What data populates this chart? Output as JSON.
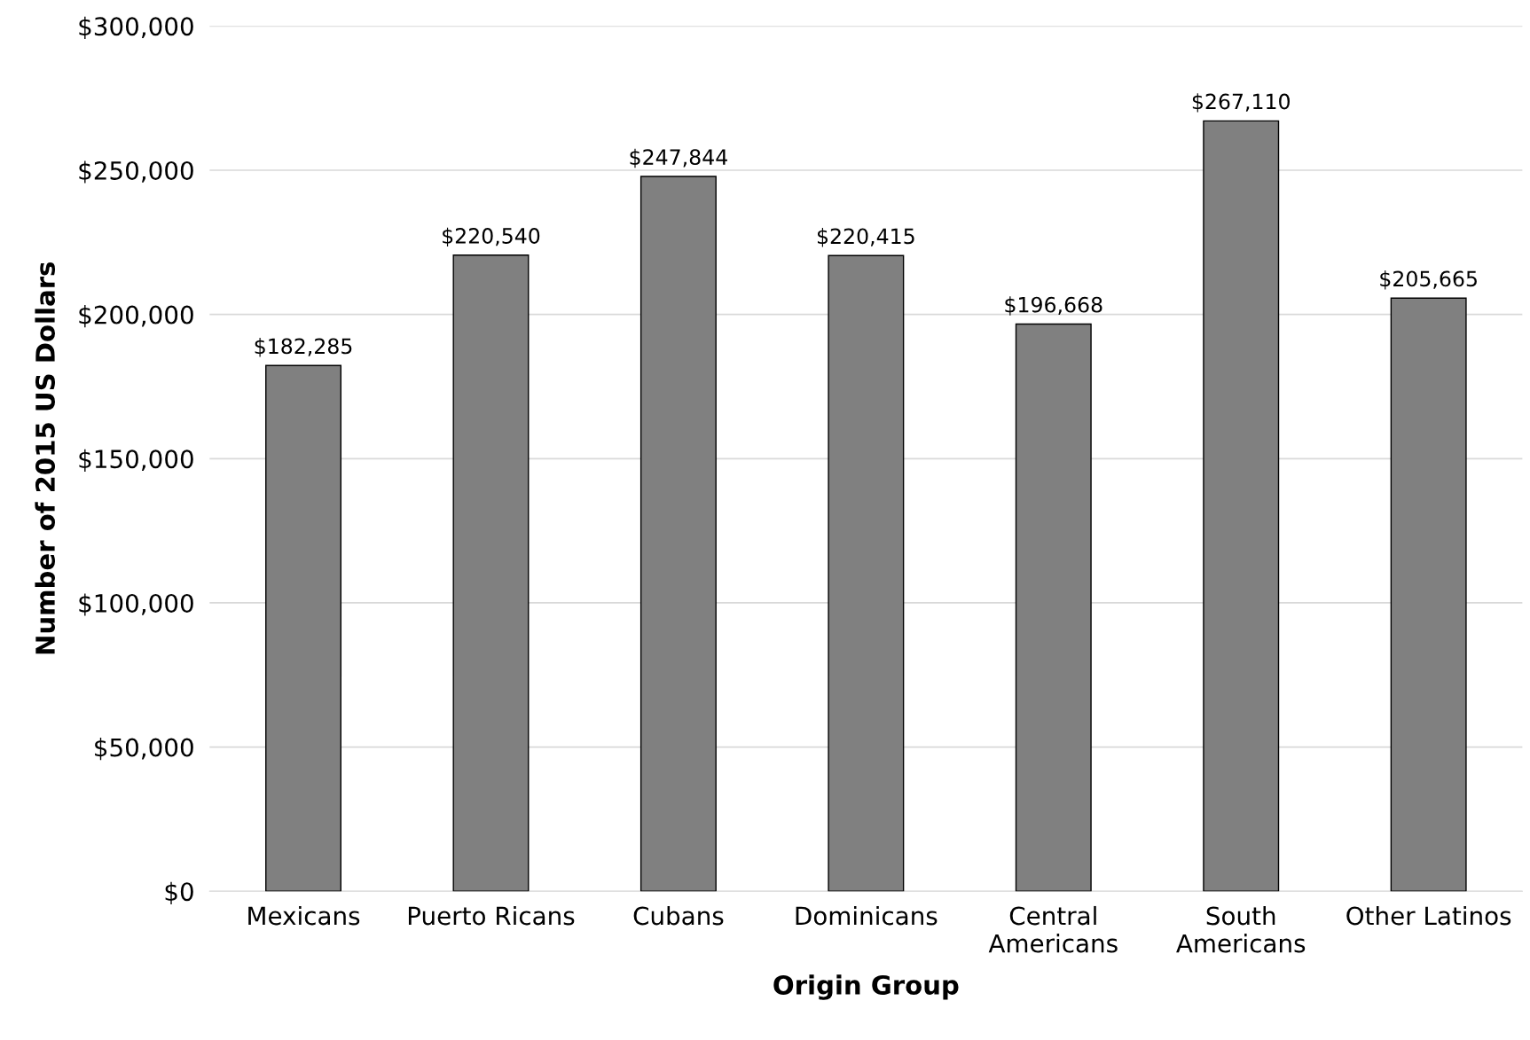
{
  "chart_data": {
    "type": "bar",
    "xlabel": "Origin Group",
    "ylabel": "Number of 2015 US Dollars",
    "categories": [
      "Mexicans",
      "Puerto Ricans",
      "Cubans",
      "Dominicans",
      "Central\nAmericans",
      "South\nAmericans",
      "Other Latinos"
    ],
    "values": [
      182285,
      220540,
      247844,
      220415,
      196668,
      267110,
      205665
    ],
    "value_labels": [
      "$182,285",
      "$220,540",
      "$247,844",
      "$220,415",
      "$196,668",
      "$267,110",
      "$205,665"
    ],
    "color": "#808080",
    "ylim": [
      0,
      300000
    ],
    "yticks": [
      {
        "value": 0,
        "label": "$0"
      },
      {
        "value": 50000,
        "label": "$50,000"
      },
      {
        "value": 100000,
        "label": "$100,000"
      },
      {
        "value": 150000,
        "label": "$150,000"
      },
      {
        "value": 200000,
        "label": "$200,000"
      },
      {
        "value": 250000,
        "label": "$250,000"
      },
      {
        "value": 300000,
        "label": "$300,000"
      }
    ],
    "grid": "y",
    "legend": false
  }
}
